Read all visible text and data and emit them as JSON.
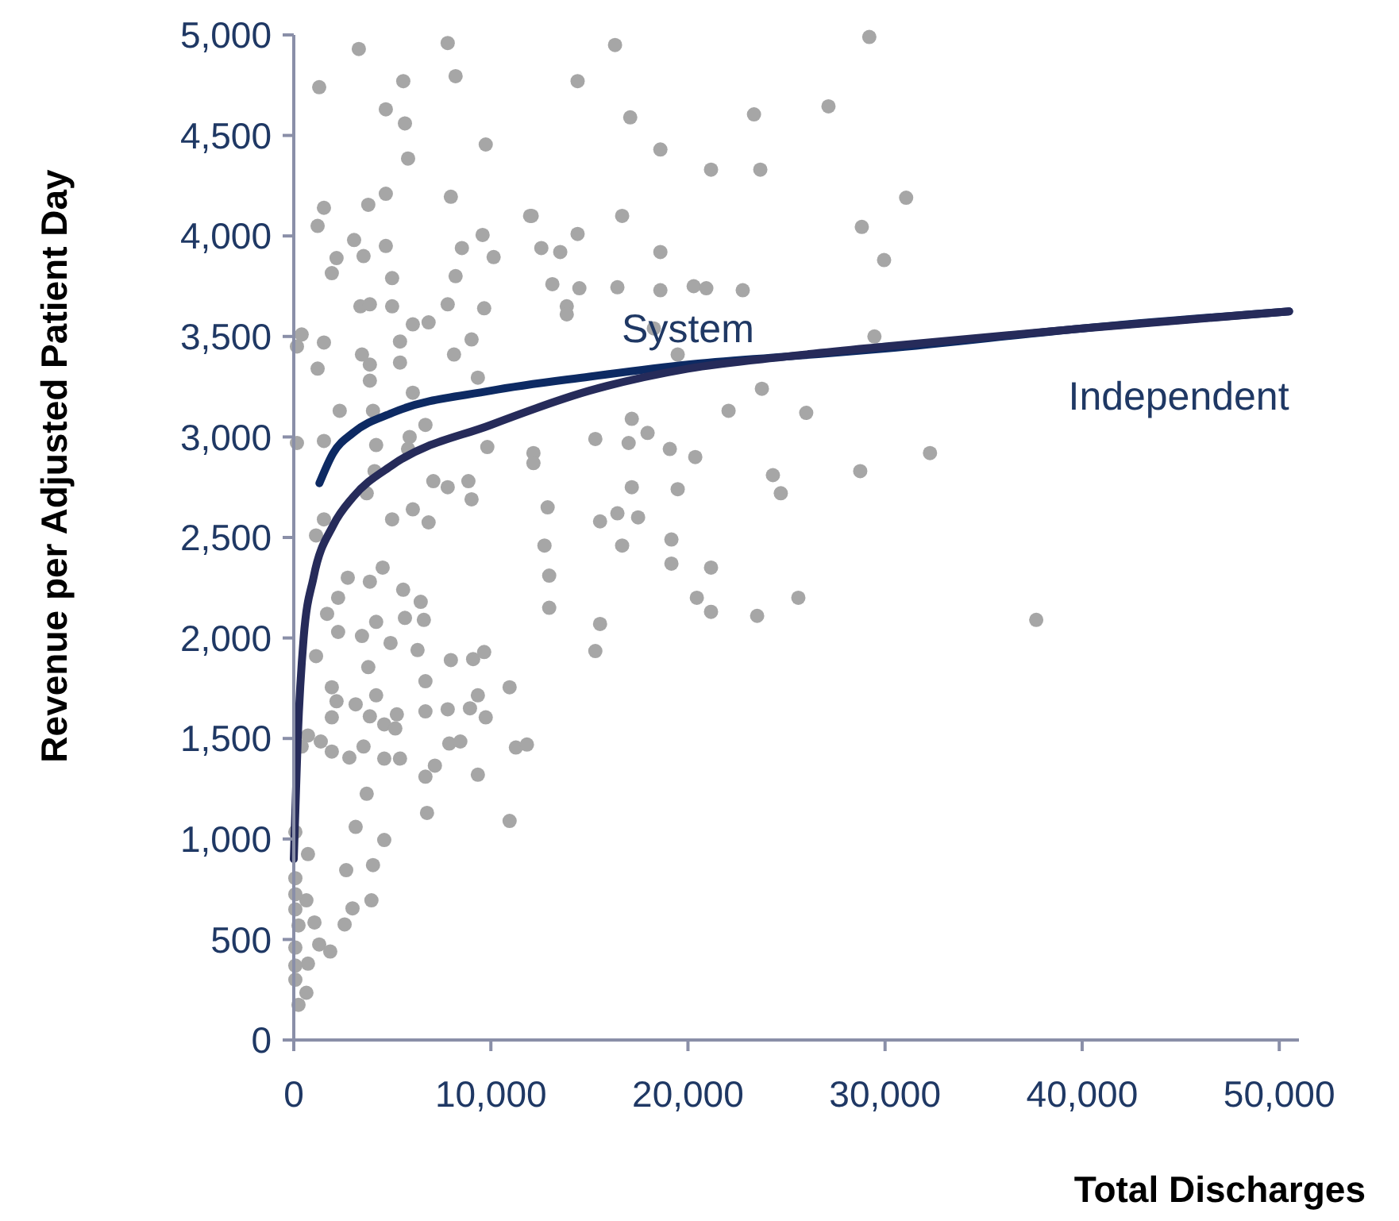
{
  "chart_data": {
    "type": "scatter",
    "xlabel": "Total Discharges",
    "ylabel": "Revenue per Adjusted Patient Day",
    "xlim": [
      0,
      51000
    ],
    "ylim": [
      0,
      5000
    ],
    "xticks": [
      {
        "value": 0,
        "label": "0"
      },
      {
        "value": 10000,
        "label": "10,000"
      },
      {
        "value": 20000,
        "label": "20,000"
      },
      {
        "value": 30000,
        "label": "30,000"
      },
      {
        "value": 40000,
        "label": "40,000"
      },
      {
        "value": 50000,
        "label": "50,000"
      }
    ],
    "yticks": [
      {
        "value": 0,
        "label": "0"
      },
      {
        "value": 500,
        "label": "500"
      },
      {
        "value": 1000,
        "label": "1,000"
      },
      {
        "value": 1500,
        "label": "1,500"
      },
      {
        "value": 2000,
        "label": "2,000"
      },
      {
        "value": 2500,
        "label": "2,500"
      },
      {
        "value": 3000,
        "label": "3,000"
      },
      {
        "value": 3500,
        "label": "3,500"
      },
      {
        "value": 4000,
        "label": "4,000"
      },
      {
        "value": 4500,
        "label": "4,500"
      },
      {
        "value": 5000,
        "label": "5,000"
      }
    ],
    "grid": false,
    "series": [
      {
        "type": "scatter",
        "color": "#a6a6a6",
        "marker": "circle",
        "x": [
          16300,
          29200,
          14400,
          17070,
          23350,
          27130,
          18600,
          21170,
          23670,
          31070,
          28820,
          29950,
          12070,
          16660,
          14400,
          12560,
          13520,
          18600,
          13120,
          14490,
          16420,
          18600,
          20290,
          20930,
          22780,
          13850,
          13850,
          18270,
          29460,
          19480,
          23750,
          22060,
          26000,
          17150,
          17950,
          19080,
          15300,
          16990,
          20370,
          32280,
          24310,
          24710,
          28740,
          17150,
          19480,
          12880,
          15540,
          16420,
          17470,
          16660,
          19160,
          12720,
          19160,
          21170,
          12960,
          20450,
          25600,
          21170,
          23510,
          12960,
          15540,
          15300,
          37670,
          3300,
          7810,
          1290,
          8210,
          5555,
          4670,
          5640,
          5800,
          9740,
          4670,
          3780,
          1530,
          1210,
          7970,
          11990,
          3060,
          4670,
          3540,
          2170,
          8530,
          9580,
          10140,
          1930,
          4990,
          8210,
          3380,
          3860,
          4990,
          7810,
          9660,
          6040,
          6840,
          400,
          160,
          1530,
          5390,
          9020,
          1210,
          3460,
          3860,
          3860,
          5390,
          8130,
          9340,
          6040,
          2330,
          4020,
          160,
          1530,
          4180,
          5880,
          5800,
          6680,
          9820,
          4100,
          3700,
          7080,
          7810,
          8860,
          9020,
          6040,
          4990,
          6840,
          1530,
          12160,
          12160,
          1130,
          2740,
          3860,
          4510,
          2250,
          1690,
          2250,
          3460,
          4180,
          5550,
          6440,
          5640,
          6600,
          4910,
          6280,
          1130,
          3780,
          7970,
          9100,
          9660,
          6680,
          10950,
          1930,
          2170,
          3140,
          4180,
          1930,
          3860,
          5230,
          4590,
          5150,
          6680,
          7810,
          8940,
          9340,
          9740,
          720,
          1370,
          1930,
          2820,
          3540,
          4590,
          5390,
          7890,
          8450,
          11270,
          11830,
          6680,
          7160,
          9340,
          3700,
          6760,
          10950,
          3140,
          4590,
          80,
          720,
          2660,
          4020,
          2980,
          3940,
          2580,
          640,
          1050,
          1290,
          1850,
          80,
          80,
          80,
          240,
          80,
          720,
          80,
          80,
          640,
          240,
          400
        ],
        "values": [
          4950,
          4990,
          4770,
          4590,
          4605,
          4645,
          4430,
          4330,
          4330,
          4190,
          4045,
          3880,
          4100,
          4100,
          4010,
          3940,
          3920,
          3920,
          3760,
          3740,
          3745,
          3730,
          3750,
          3740,
          3730,
          3650,
          3610,
          3540,
          3500,
          3410,
          3240,
          3130,
          3120,
          3090,
          3020,
          2940,
          2990,
          2970,
          2900,
          2920,
          2810,
          2720,
          2830,
          2750,
          2740,
          2650,
          2580,
          2620,
          2600,
          2460,
          2490,
          2460,
          2370,
          2350,
          2310,
          2200,
          2200,
          2130,
          2110,
          2150,
          2070,
          1935,
          2090,
          4930,
          4960,
          4740,
          4795,
          4770,
          4630,
          4560,
          4385,
          4455,
          4210,
          4155,
          4140,
          4050,
          4195,
          4100,
          3980,
          3950,
          3900,
          3890,
          3940,
          4005,
          3895,
          3815,
          3790,
          3800,
          3650,
          3660,
          3650,
          3660,
          3640,
          3560,
          3570,
          3510,
          3450,
          3470,
          3475,
          3485,
          3340,
          3410,
          3360,
          3280,
          3370,
          3410,
          3295,
          3220,
          3130,
          3130,
          2970,
          2980,
          2960,
          3000,
          2940,
          3060,
          2950,
          2830,
          2720,
          2780,
          2750,
          2780,
          2690,
          2640,
          2590,
          2575,
          2590,
          2920,
          2870,
          2510,
          2300,
          2280,
          2350,
          2200,
          2120,
          2030,
          2010,
          2080,
          2240,
          2180,
          2100,
          2090,
          1975,
          1940,
          1910,
          1855,
          1890,
          1895,
          1930,
          1785,
          1755,
          1755,
          1685,
          1670,
          1715,
          1605,
          1610,
          1620,
          1570,
          1550,
          1635,
          1645,
          1650,
          1715,
          1605,
          1515,
          1485,
          1435,
          1405,
          1460,
          1400,
          1400,
          1475,
          1485,
          1455,
          1470,
          1310,
          1365,
          1320,
          1225,
          1130,
          1090,
          1060,
          995,
          1035,
          925,
          845,
          870,
          655,
          695,
          575,
          695,
          585,
          475,
          440,
          805,
          725,
          650,
          570,
          460,
          380,
          370,
          300,
          235,
          175,
          1460
        ]
      },
      {
        "type": "line",
        "name": "System",
        "color": "#0d2a63",
        "x": [
          1300,
          2000,
          3000,
          5000,
          10000,
          15000,
          20000,
          25000,
          30000,
          40000,
          50500
        ],
        "values": [
          2770,
          2920,
          3020,
          3120,
          3230,
          3300,
          3360,
          3400,
          3440,
          3540,
          3625
        ]
      },
      {
        "type": "line",
        "name": "Independent",
        "color": "#262b5a",
        "x": [
          0,
          200,
          500,
          1000,
          2000,
          3000,
          5000,
          10000,
          15000,
          20000,
          25000,
          30000,
          40000,
          50500
        ],
        "values": [
          900,
          1500,
          2000,
          2300,
          2560,
          2700,
          2860,
          3060,
          3230,
          3340,
          3400,
          3450,
          3540,
          3625
        ]
      }
    ]
  }
}
